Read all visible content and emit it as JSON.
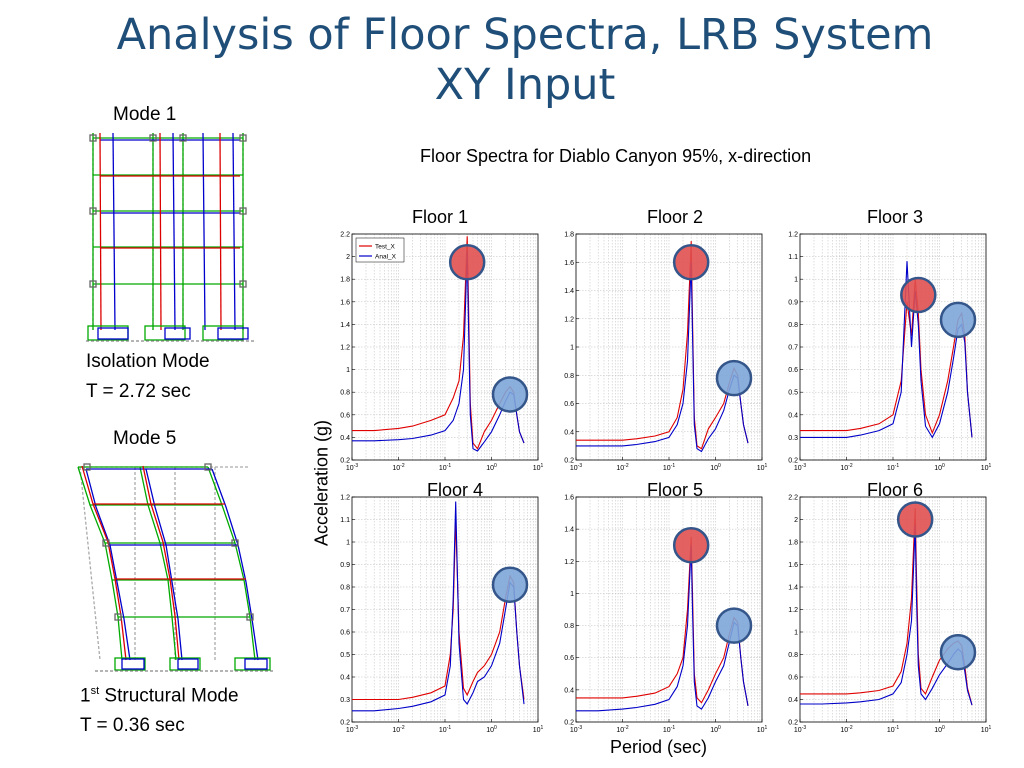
{
  "slide": {
    "title_line1": "Analysis of Floor Spectra, LRB System",
    "title_line2": "XY Input",
    "mode1_label": "Mode 1",
    "isolation_mode_label": "Isolation Mode",
    "isolation_mode_period": "T = 2.72 sec",
    "mode5_label": "Mode 5",
    "structural_mode_num": "1",
    "structural_mode_sup": "st",
    "structural_mode_label": " Structural Mode",
    "structural_mode_period": "T = 0.36 sec",
    "spectra_heading": "Floor Spectra for Diablo Canyon 95%, x-direction",
    "y_axis_label": "Acceleration (g)",
    "x_axis_label": "Period (sec)"
  },
  "colors": {
    "title": "#1f4e79",
    "test_series": "#e00000",
    "anal_series": "#0000c8",
    "peak_marker_red": "#e05050",
    "peak_marker_blue": "#7ea6d8",
    "marker_outline": "#34568a"
  },
  "chart_data": [
    {
      "type": "line",
      "title": "Floor 1",
      "xscale": "log",
      "xlim": [
        0.001,
        10
      ],
      "xticks": [
        "10-3",
        "10-2",
        "10-1",
        "100",
        "101"
      ],
      "ylim": [
        0.2,
        2.2
      ],
      "yticks": [
        "0.2",
        "0.4",
        "0.6",
        "0.8",
        "1",
        "1.2",
        "1.4",
        "1.6",
        "1.8",
        "2",
        "2.2"
      ],
      "legend": [
        "Test_X",
        "Anal_X"
      ],
      "legend_position": "top-left",
      "grid": true,
      "series": [
        {
          "name": "Test_X",
          "x": [
            0.001,
            0.003,
            0.01,
            0.02,
            0.05,
            0.1,
            0.15,
            0.2,
            0.25,
            0.3,
            0.32,
            0.35,
            0.4,
            0.5,
            0.7,
            1,
            1.5,
            2,
            2.5,
            3,
            3.5,
            4,
            5
          ],
          "y": [
            0.46,
            0.46,
            0.48,
            0.5,
            0.55,
            0.6,
            0.75,
            0.9,
            1.3,
            2.18,
            1.6,
            0.7,
            0.35,
            0.3,
            0.45,
            0.55,
            0.7,
            0.8,
            0.85,
            0.8,
            0.6,
            0.45,
            0.35
          ]
        },
        {
          "name": "Anal_X",
          "x": [
            0.001,
            0.003,
            0.01,
            0.02,
            0.05,
            0.1,
            0.15,
            0.2,
            0.25,
            0.3,
            0.32,
            0.35,
            0.4,
            0.5,
            0.7,
            1,
            1.5,
            2,
            2.5,
            3,
            3.5,
            4,
            5
          ],
          "y": [
            0.37,
            0.37,
            0.38,
            0.39,
            0.42,
            0.46,
            0.55,
            0.7,
            1.0,
            2.05,
            1.4,
            0.6,
            0.3,
            0.28,
            0.36,
            0.45,
            0.6,
            0.72,
            0.8,
            0.78,
            0.6,
            0.45,
            0.35
          ]
        }
      ],
      "peak_markers": [
        {
          "color": "red",
          "x": 0.3,
          "y": 1.95
        },
        {
          "color": "blue",
          "x": 2.5,
          "y": 0.78
        }
      ]
    },
    {
      "type": "line",
      "title": "Floor 2",
      "xscale": "log",
      "xlim": [
        0.001,
        10
      ],
      "xticks": [
        "10-3",
        "10-2",
        "10-1",
        "100",
        "101"
      ],
      "ylim": [
        0.2,
        1.8
      ],
      "yticks": [
        "0.2",
        "0.4",
        "0.6",
        "0.8",
        "1",
        "1.2",
        "1.4",
        "1.6",
        "1.8"
      ],
      "grid": true,
      "series": [
        {
          "name": "Test_X",
          "x": [
            0.001,
            0.003,
            0.01,
            0.02,
            0.05,
            0.1,
            0.15,
            0.2,
            0.25,
            0.3,
            0.32,
            0.35,
            0.4,
            0.5,
            0.7,
            1,
            1.5,
            2,
            2.5,
            3,
            3.5,
            4,
            5
          ],
          "y": [
            0.34,
            0.34,
            0.34,
            0.35,
            0.37,
            0.4,
            0.5,
            0.7,
            1.1,
            1.75,
            1.2,
            0.5,
            0.3,
            0.28,
            0.42,
            0.5,
            0.6,
            0.75,
            0.85,
            0.8,
            0.6,
            0.45,
            0.32
          ]
        },
        {
          "name": "Anal_X",
          "x": [
            0.001,
            0.003,
            0.01,
            0.02,
            0.05,
            0.1,
            0.15,
            0.2,
            0.25,
            0.3,
            0.32,
            0.35,
            0.4,
            0.5,
            0.7,
            1,
            1.5,
            2,
            2.5,
            3,
            3.5,
            4,
            5
          ],
          "y": [
            0.3,
            0.3,
            0.3,
            0.31,
            0.33,
            0.36,
            0.45,
            0.6,
            0.9,
            1.6,
            1.1,
            0.45,
            0.28,
            0.26,
            0.35,
            0.42,
            0.55,
            0.7,
            0.8,
            0.78,
            0.6,
            0.45,
            0.32
          ]
        }
      ],
      "peak_markers": [
        {
          "color": "red",
          "x": 0.3,
          "y": 1.6
        },
        {
          "color": "blue",
          "x": 2.5,
          "y": 0.78
        }
      ]
    },
    {
      "type": "line",
      "title": "Floor 3",
      "xscale": "log",
      "xlim": [
        0.001,
        10
      ],
      "xticks": [
        "10-3",
        "10-2",
        "10-1",
        "100",
        "101"
      ],
      "ylim": [
        0.2,
        1.2
      ],
      "yticks": [
        "0.2",
        "0.3",
        "0.4",
        "0.5",
        "0.6",
        "0.7",
        "0.8",
        "0.9",
        "1",
        "1.1",
        "1.2"
      ],
      "grid": true,
      "series": [
        {
          "name": "Test_X",
          "x": [
            0.001,
            0.003,
            0.01,
            0.02,
            0.05,
            0.1,
            0.15,
            0.2,
            0.25,
            0.3,
            0.35,
            0.4,
            0.5,
            0.7,
            1,
            1.5,
            2,
            2.5,
            3,
            3.5,
            4,
            5
          ],
          "y": [
            0.33,
            0.33,
            0.33,
            0.34,
            0.36,
            0.4,
            0.55,
            0.9,
            0.75,
            1.0,
            0.85,
            0.6,
            0.4,
            0.32,
            0.4,
            0.55,
            0.7,
            0.82,
            0.85,
            0.75,
            0.5,
            0.3
          ]
        },
        {
          "name": "Anal_X",
          "x": [
            0.001,
            0.003,
            0.01,
            0.02,
            0.05,
            0.1,
            0.15,
            0.2,
            0.25,
            0.3,
            0.35,
            0.4,
            0.5,
            0.7,
            1,
            1.5,
            2,
            2.5,
            3,
            3.5,
            4,
            5
          ],
          "y": [
            0.3,
            0.3,
            0.3,
            0.31,
            0.33,
            0.36,
            0.5,
            1.08,
            0.7,
            0.95,
            0.8,
            0.55,
            0.35,
            0.3,
            0.36,
            0.5,
            0.65,
            0.78,
            0.8,
            0.72,
            0.5,
            0.3
          ]
        }
      ],
      "peak_markers": [
        {
          "color": "red",
          "x": 0.35,
          "y": 0.93
        },
        {
          "color": "blue",
          "x": 2.5,
          "y": 0.82
        }
      ]
    },
    {
      "type": "line",
      "title": "Floor 4",
      "xscale": "log",
      "xlim": [
        0.001,
        10
      ],
      "xticks": [
        "10-3",
        "10-2",
        "10-1",
        "100",
        "101"
      ],
      "ylim": [
        0.2,
        1.2
      ],
      "yticks": [
        "0.2",
        "0.3",
        "0.4",
        "0.5",
        "0.6",
        "0.7",
        "0.8",
        "0.9",
        "1",
        "1.1",
        "1.2"
      ],
      "grid": true,
      "series": [
        {
          "name": "Test_X",
          "x": [
            0.001,
            0.003,
            0.01,
            0.02,
            0.05,
            0.1,
            0.13,
            0.15,
            0.17,
            0.2,
            0.25,
            0.3,
            0.4,
            0.5,
            0.7,
            1,
            1.5,
            2,
            2.5,
            3,
            3.5,
            4,
            5
          ],
          "y": [
            0.3,
            0.3,
            0.3,
            0.31,
            0.33,
            0.36,
            0.5,
            0.7,
            1.1,
            0.6,
            0.35,
            0.32,
            0.38,
            0.42,
            0.45,
            0.5,
            0.6,
            0.75,
            0.85,
            0.82,
            0.6,
            0.45,
            0.3
          ]
        },
        {
          "name": "Anal_X",
          "x": [
            0.001,
            0.003,
            0.01,
            0.02,
            0.05,
            0.1,
            0.13,
            0.15,
            0.17,
            0.2,
            0.25,
            0.3,
            0.4,
            0.5,
            0.7,
            1,
            1.5,
            2,
            2.5,
            3,
            3.5,
            4,
            5
          ],
          "y": [
            0.25,
            0.25,
            0.26,
            0.27,
            0.29,
            0.32,
            0.45,
            0.75,
            1.18,
            0.55,
            0.3,
            0.28,
            0.33,
            0.38,
            0.4,
            0.45,
            0.55,
            0.7,
            0.82,
            0.8,
            0.6,
            0.45,
            0.28
          ]
        }
      ],
      "peak_markers": [
        {
          "color": "blue",
          "x": 2.5,
          "y": 0.81
        }
      ]
    },
    {
      "type": "line",
      "title": "Floor 5",
      "xscale": "log",
      "xlim": [
        0.001,
        10
      ],
      "xticks": [
        "10-3",
        "10-2",
        "10-1",
        "100",
        "101"
      ],
      "ylim": [
        0.2,
        1.6
      ],
      "yticks": [
        "0.2",
        "0.4",
        "0.6",
        "0.8",
        "1",
        "1.2",
        "1.4",
        "1.6"
      ],
      "grid": true,
      "series": [
        {
          "name": "Test_X",
          "x": [
            0.001,
            0.003,
            0.01,
            0.02,
            0.05,
            0.1,
            0.15,
            0.2,
            0.25,
            0.3,
            0.32,
            0.35,
            0.4,
            0.5,
            0.7,
            1,
            1.5,
            2,
            2.5,
            3,
            3.5,
            4,
            5
          ],
          "y": [
            0.35,
            0.35,
            0.35,
            0.36,
            0.38,
            0.42,
            0.5,
            0.6,
            0.9,
            1.35,
            1.0,
            0.5,
            0.35,
            0.32,
            0.4,
            0.5,
            0.6,
            0.75,
            0.85,
            0.82,
            0.6,
            0.45,
            0.3
          ]
        },
        {
          "name": "Anal_X",
          "x": [
            0.001,
            0.003,
            0.01,
            0.02,
            0.05,
            0.1,
            0.15,
            0.2,
            0.25,
            0.3,
            0.32,
            0.35,
            0.4,
            0.5,
            0.7,
            1,
            1.5,
            2,
            2.5,
            3,
            3.5,
            4,
            5
          ],
          "y": [
            0.27,
            0.27,
            0.28,
            0.29,
            0.31,
            0.34,
            0.42,
            0.55,
            0.8,
            1.3,
            0.9,
            0.45,
            0.3,
            0.28,
            0.35,
            0.45,
            0.55,
            0.7,
            0.82,
            0.8,
            0.6,
            0.45,
            0.3
          ]
        }
      ],
      "peak_markers": [
        {
          "color": "red",
          "x": 0.3,
          "y": 1.3
        },
        {
          "color": "blue",
          "x": 2.5,
          "y": 0.8
        }
      ]
    },
    {
      "type": "line",
      "title": "Floor 6",
      "xscale": "log",
      "xlim": [
        0.001,
        10
      ],
      "xticks": [
        "10-3",
        "10-2",
        "10-1",
        "100",
        "101"
      ],
      "ylim": [
        0.2,
        2.2
      ],
      "yticks": [
        "0.2",
        "0.4",
        "0.6",
        "0.8",
        "1",
        "1.2",
        "1.4",
        "1.6",
        "1.8",
        "2",
        "2.2"
      ],
      "grid": true,
      "series": [
        {
          "name": "Test_X",
          "x": [
            0.001,
            0.003,
            0.01,
            0.02,
            0.05,
            0.1,
            0.15,
            0.2,
            0.25,
            0.3,
            0.32,
            0.35,
            0.4,
            0.5,
            0.7,
            1,
            1.5,
            2,
            2.5,
            3,
            3.5,
            4,
            5
          ],
          "y": [
            0.45,
            0.45,
            0.45,
            0.46,
            0.48,
            0.52,
            0.65,
            0.9,
            1.3,
            2.1,
            1.5,
            0.8,
            0.5,
            0.45,
            0.6,
            0.75,
            0.85,
            0.9,
            0.92,
            0.88,
            0.7,
            0.5,
            0.35
          ]
        },
        {
          "name": "Anal_X",
          "x": [
            0.001,
            0.003,
            0.01,
            0.02,
            0.05,
            0.1,
            0.15,
            0.2,
            0.25,
            0.3,
            0.32,
            0.35,
            0.4,
            0.5,
            0.7,
            1,
            1.5,
            2,
            2.5,
            3,
            3.5,
            4,
            5
          ],
          "y": [
            0.36,
            0.36,
            0.37,
            0.38,
            0.4,
            0.45,
            0.55,
            0.8,
            1.1,
            1.95,
            1.3,
            0.7,
            0.45,
            0.4,
            0.5,
            0.62,
            0.72,
            0.8,
            0.85,
            0.82,
            0.65,
            0.48,
            0.35
          ]
        }
      ],
      "peak_markers": [
        {
          "color": "red",
          "x": 0.3,
          "y": 2.0
        },
        {
          "color": "blue",
          "x": 2.5,
          "y": 0.82
        }
      ]
    }
  ]
}
